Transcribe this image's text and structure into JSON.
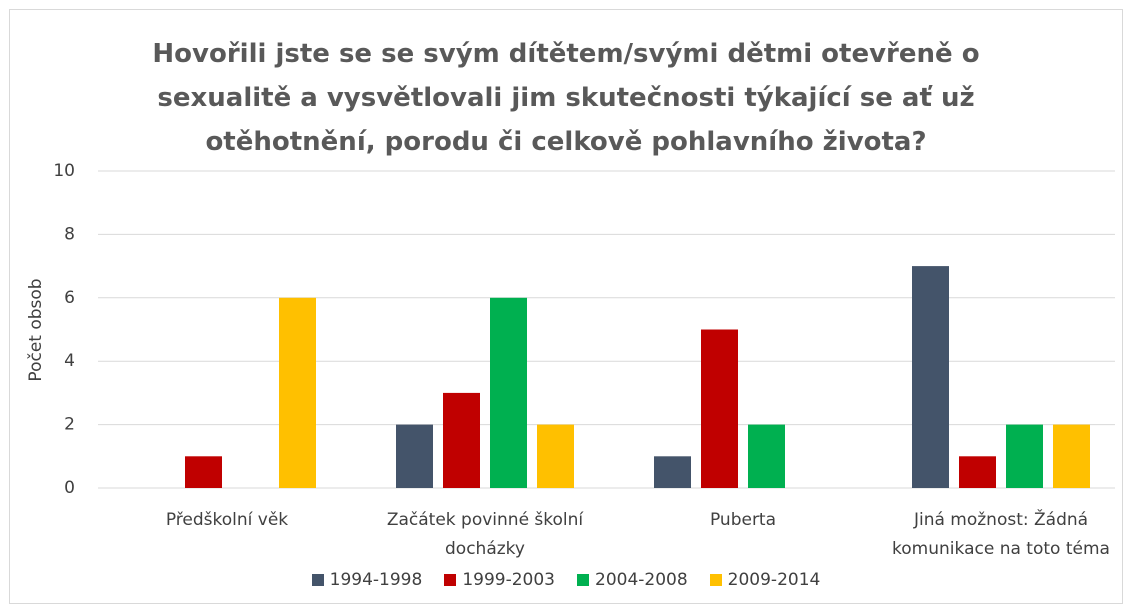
{
  "chart_data": {
    "type": "bar",
    "title": "Hovořili jste se se svým dítětem/svými dětmi otevřeně o sexualitě a vysvětlovali jim skutečnosti týkající se ať už otěhotnění, porodu či celkově pohlavního života?",
    "y_label": "Počet obsob",
    "categories": [
      "Předškolní věk",
      "Začátek povinné školní docházky",
      "Puberta",
      "Jiná možnost: Žádná komunikace na toto téma"
    ],
    "series": [
      {
        "name": "1994-1998",
        "color": "#44546a",
        "values": [
          0,
          2,
          1,
          7
        ]
      },
      {
        "name": "1999-2003",
        "color": "#c00000",
        "values": [
          1,
          3,
          5,
          1
        ]
      },
      {
        "name": "2004-2008",
        "color": "#00b050",
        "values": [
          0,
          6,
          2,
          2
        ]
      },
      {
        "name": "2009-2014",
        "color": "#ffc000",
        "values": [
          6,
          2,
          0,
          2
        ]
      }
    ],
    "ylim": [
      0,
      10
    ],
    "yticks": [
      0,
      2,
      4,
      6,
      8,
      10
    ],
    "grid": true,
    "legend": "bottom"
  }
}
